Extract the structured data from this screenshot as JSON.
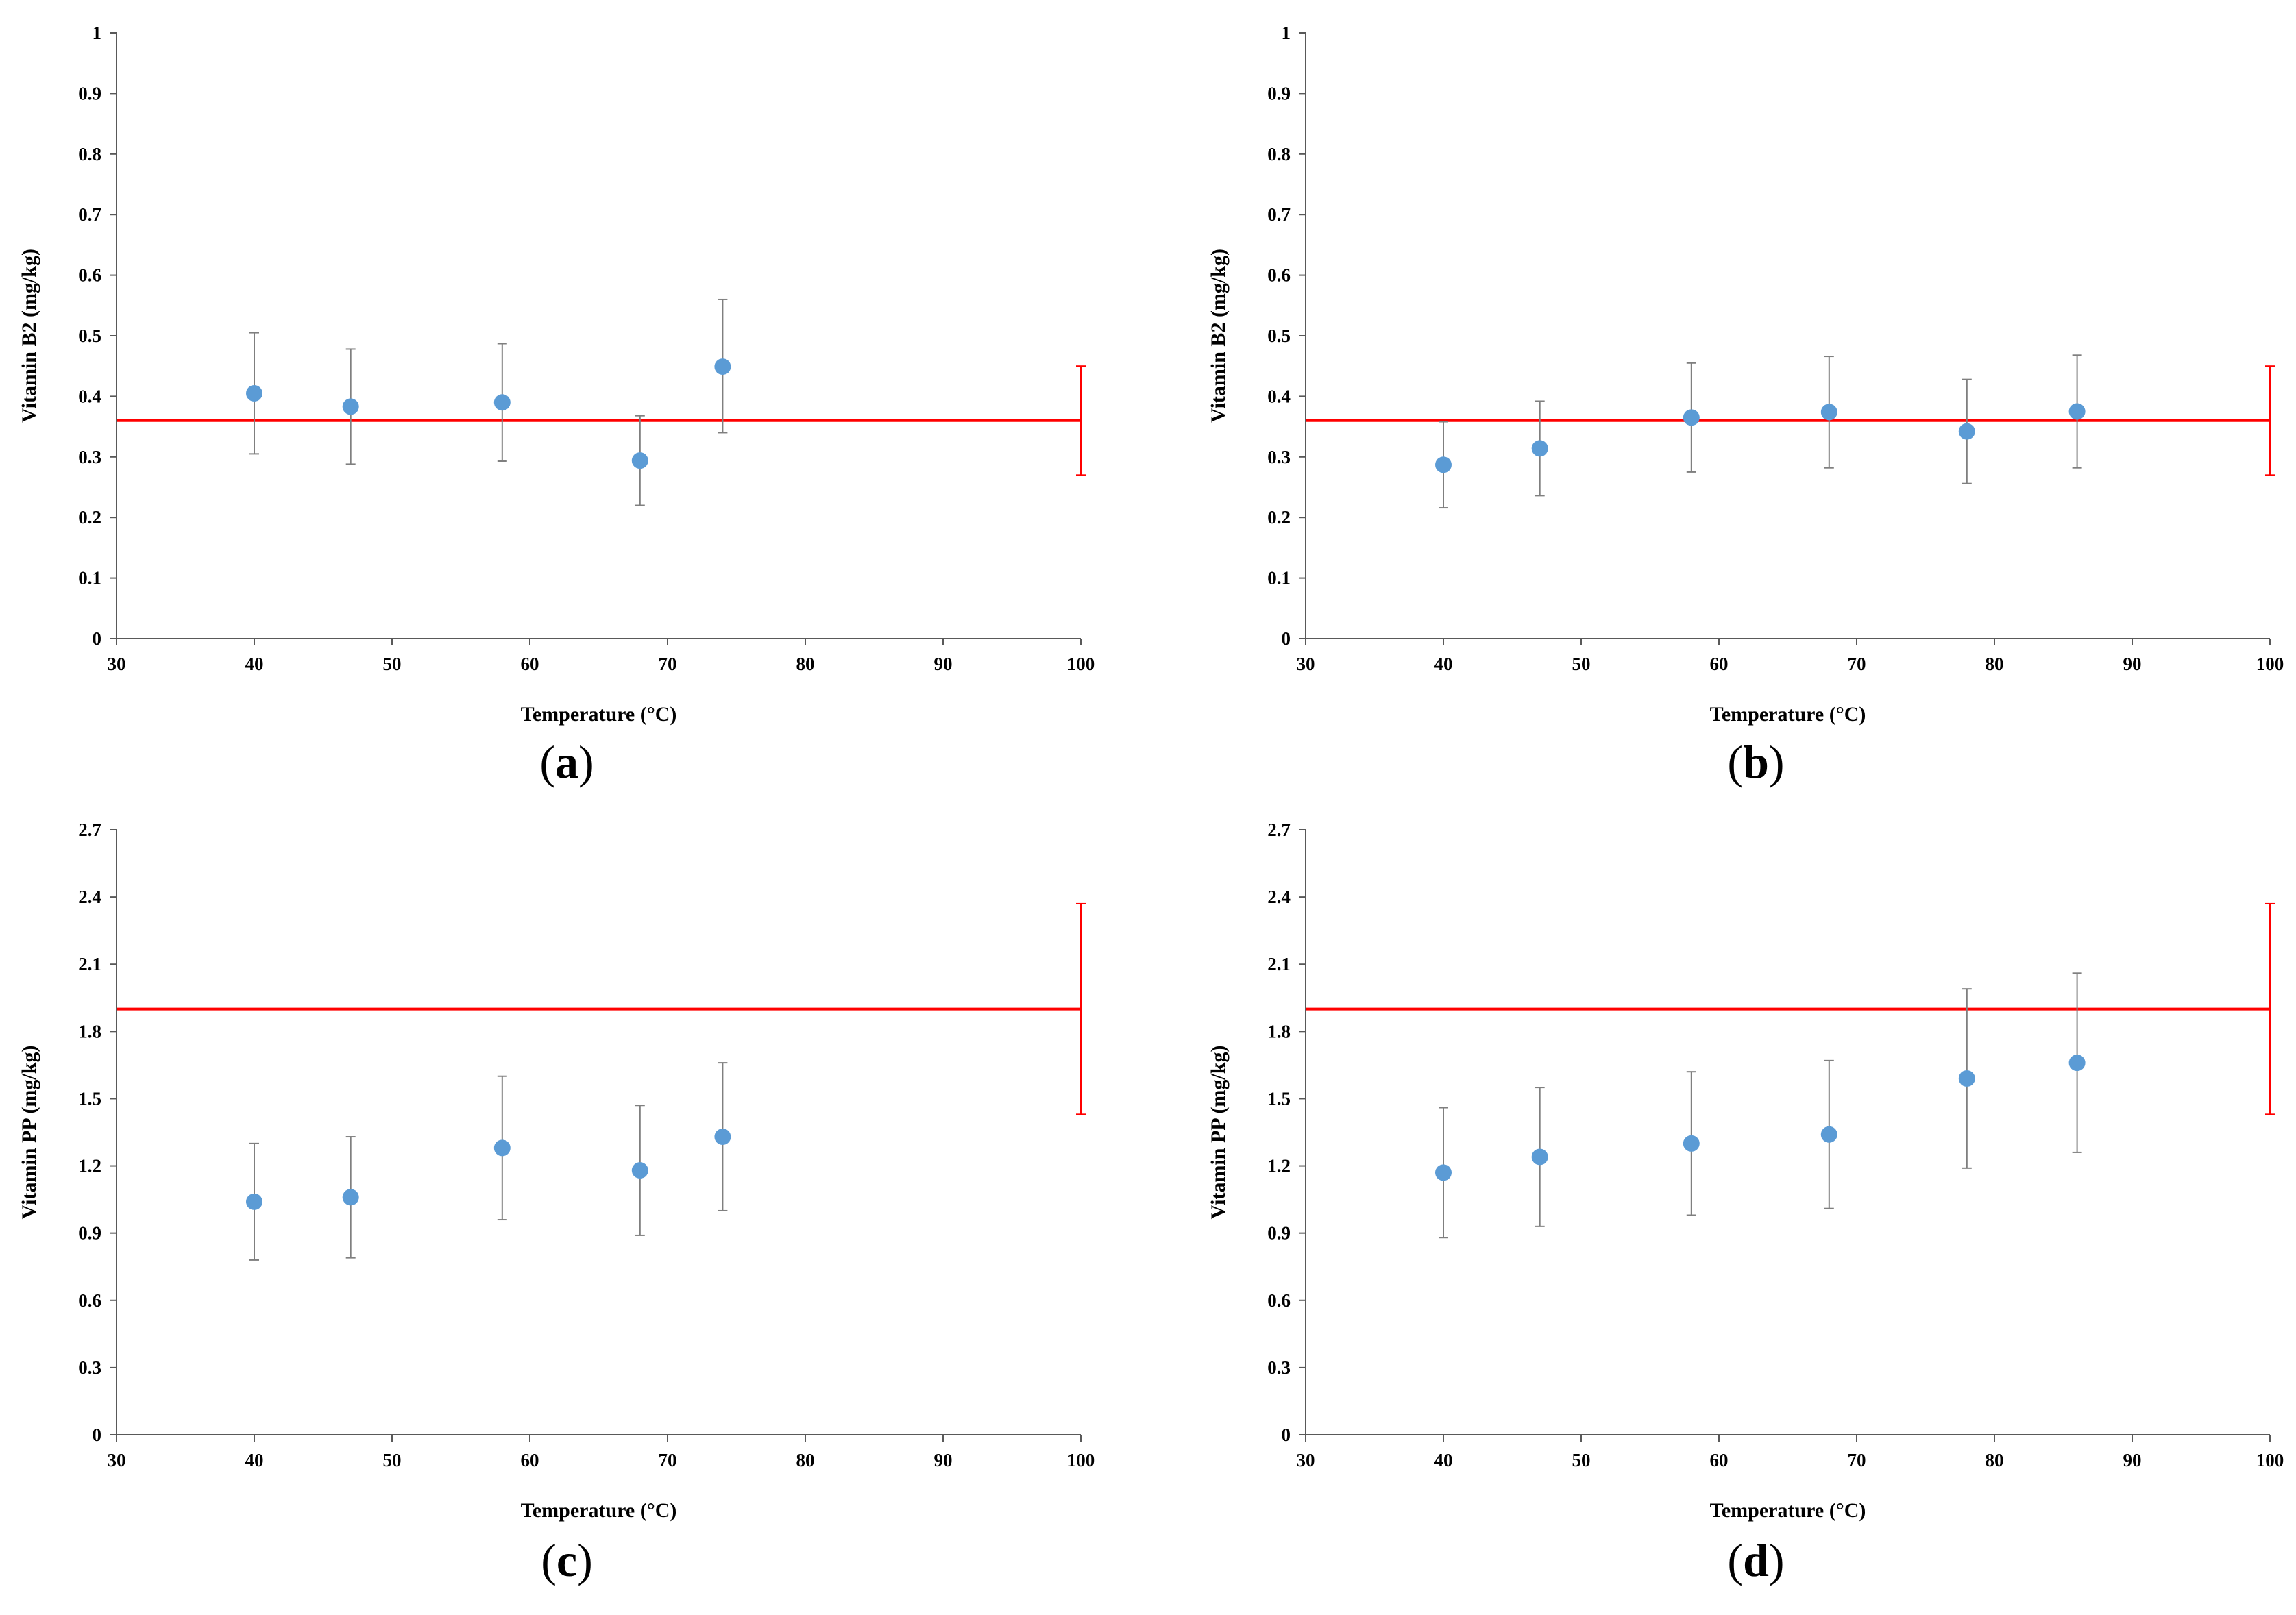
{
  "chart_data": [
    {
      "type": "scatter",
      "panel_label": "a",
      "xlabel": "Temperature (°C)",
      "ylabel": "Vitamin B2 (mg/kg)",
      "xlim": [
        30,
        100
      ],
      "ylim": [
        0,
        1
      ],
      "xticks": [
        30,
        40,
        50,
        60,
        70,
        80,
        90,
        100
      ],
      "yticks": [
        0,
        0.1,
        0.2,
        0.3,
        0.4,
        0.5,
        0.6,
        0.7,
        0.8,
        0.9,
        1
      ],
      "ytick_labels": [
        "0",
        "0.1",
        "0.2",
        "0.3",
        "0.4",
        "0.5",
        "0.6",
        "0.7",
        "0.8",
        "0.9",
        "1"
      ],
      "points": [
        {
          "x": 40,
          "y": 0.405,
          "err_low": 0.305,
          "err_high": 0.505
        },
        {
          "x": 47,
          "y": 0.383,
          "err_low": 0.288,
          "err_high": 0.478
        },
        {
          "x": 58,
          "y": 0.39,
          "err_low": 0.293,
          "err_high": 0.487
        },
        {
          "x": 68,
          "y": 0.294,
          "err_low": 0.22,
          "err_high": 0.368
        },
        {
          "x": 74,
          "y": 0.449,
          "err_low": 0.34,
          "err_high": 0.56
        }
      ],
      "reference": {
        "y": 0.36,
        "x_start": 30,
        "x_end": 100,
        "err_x": 100,
        "err_low": 0.27,
        "err_high": 0.45
      },
      "colors": {
        "points": "#5b9bd5",
        "errorbars": "#7f7f7f",
        "reference": "#ff0000",
        "axis": "#595959"
      }
    },
    {
      "type": "scatter",
      "panel_label": "b",
      "xlabel": "Temperature (°C)",
      "ylabel": "Vitamin B2 (mg/kg)",
      "xlim": [
        30,
        100
      ],
      "ylim": [
        0,
        1
      ],
      "xticks": [
        30,
        40,
        50,
        60,
        70,
        80,
        90,
        100
      ],
      "yticks": [
        0,
        0.1,
        0.2,
        0.3,
        0.4,
        0.5,
        0.6,
        0.7,
        0.8,
        0.9,
        1
      ],
      "ytick_labels": [
        "0",
        "0.1",
        "0.2",
        "0.3",
        "0.4",
        "0.5",
        "0.6",
        "0.7",
        "0.8",
        "0.9",
        "1"
      ],
      "points": [
        {
          "x": 40,
          "y": 0.287,
          "err_low": 0.216,
          "err_high": 0.358
        },
        {
          "x": 47,
          "y": 0.314,
          "err_low": 0.236,
          "err_high": 0.392
        },
        {
          "x": 58,
          "y": 0.365,
          "err_low": 0.275,
          "err_high": 0.455
        },
        {
          "x": 68,
          "y": 0.374,
          "err_low": 0.282,
          "err_high": 0.466
        },
        {
          "x": 78,
          "y": 0.342,
          "err_low": 0.256,
          "err_high": 0.428
        },
        {
          "x": 86,
          "y": 0.375,
          "err_low": 0.282,
          "err_high": 0.468
        }
      ],
      "reference": {
        "y": 0.36,
        "x_start": 30,
        "x_end": 100,
        "err_x": 100,
        "err_low": 0.27,
        "err_high": 0.45
      },
      "colors": {
        "points": "#5b9bd5",
        "errorbars": "#7f7f7f",
        "reference": "#ff0000",
        "axis": "#595959"
      }
    },
    {
      "type": "scatter",
      "panel_label": "c",
      "xlabel": "Temperature (°C)",
      "ylabel": "Vitamin PP (mg/kg)",
      "xlim": [
        30,
        100
      ],
      "ylim": [
        0,
        2.7
      ],
      "xticks": [
        30,
        40,
        50,
        60,
        70,
        80,
        90,
        100
      ],
      "yticks": [
        0,
        0.3,
        0.6,
        0.9,
        1.2,
        1.5,
        1.8,
        2.1,
        2.4,
        2.7
      ],
      "ytick_labels": [
        "0",
        "0.3",
        "0.6",
        "0.9",
        "1.2",
        "1.5",
        "1.8",
        "2.1",
        "2.4",
        "2.7"
      ],
      "points": [
        {
          "x": 40,
          "y": 1.04,
          "err_low": 0.78,
          "err_high": 1.3
        },
        {
          "x": 47,
          "y": 1.06,
          "err_low": 0.79,
          "err_high": 1.33
        },
        {
          "x": 58,
          "y": 1.28,
          "err_low": 0.96,
          "err_high": 1.6
        },
        {
          "x": 68,
          "y": 1.18,
          "err_low": 0.89,
          "err_high": 1.47
        },
        {
          "x": 74,
          "y": 1.33,
          "err_low": 1.0,
          "err_high": 1.66
        }
      ],
      "reference": {
        "y": 1.9,
        "x_start": 30,
        "x_end": 100,
        "err_x": 100,
        "err_low": 1.43,
        "err_high": 2.37
      },
      "colors": {
        "points": "#5b9bd5",
        "errorbars": "#7f7f7f",
        "reference": "#ff0000",
        "axis": "#595959"
      }
    },
    {
      "type": "scatter",
      "panel_label": "d",
      "xlabel": "Temperature (°C)",
      "ylabel": "Vitamin PP (mg/kg)",
      "xlim": [
        30,
        100
      ],
      "ylim": [
        0,
        2.7
      ],
      "xticks": [
        30,
        40,
        50,
        60,
        70,
        80,
        90,
        100
      ],
      "yticks": [
        0,
        0.3,
        0.6,
        0.9,
        1.2,
        1.5,
        1.8,
        2.1,
        2.4,
        2.7
      ],
      "ytick_labels": [
        "0",
        "0.3",
        "0.6",
        "0.9",
        "1.2",
        "1.5",
        "1.8",
        "2.1",
        "2.4",
        "2.7"
      ],
      "points": [
        {
          "x": 40,
          "y": 1.17,
          "err_low": 0.88,
          "err_high": 1.46
        },
        {
          "x": 47,
          "y": 1.24,
          "err_low": 0.93,
          "err_high": 1.55
        },
        {
          "x": 58,
          "y": 1.3,
          "err_low": 0.98,
          "err_high": 1.62
        },
        {
          "x": 68,
          "y": 1.34,
          "err_low": 1.01,
          "err_high": 1.67
        },
        {
          "x": 78,
          "y": 1.59,
          "err_low": 1.19,
          "err_high": 1.99
        },
        {
          "x": 86,
          "y": 1.66,
          "err_low": 1.26,
          "err_high": 2.06
        }
      ],
      "reference": {
        "y": 1.9,
        "x_start": 30,
        "x_end": 100,
        "err_x": 100,
        "err_low": 1.43,
        "err_high": 2.37
      },
      "colors": {
        "points": "#5b9bd5",
        "errorbars": "#7f7f7f",
        "reference": "#ff0000",
        "axis": "#595959"
      }
    }
  ]
}
